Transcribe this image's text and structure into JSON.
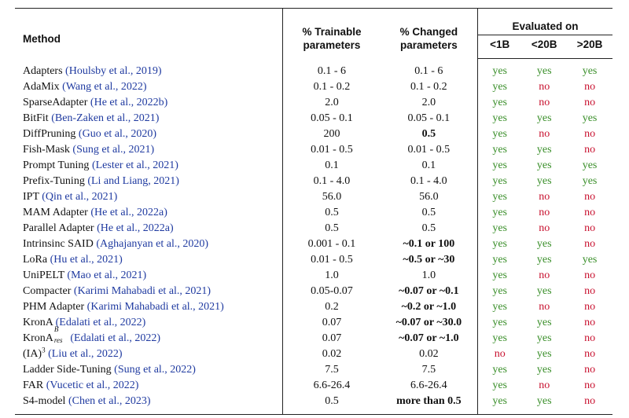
{
  "header": {
    "method": "Method",
    "trainable_1": "% Trainable",
    "trainable_2": "parameters",
    "changed_1": "% Changed",
    "changed_2": "parameters",
    "evaluated": "Evaluated on",
    "eval_lt1b": "<1B",
    "eval_lt20b": "<20B",
    "eval_gt20b": ">20B"
  },
  "rows": [
    {
      "name": "Adapters",
      "cite": "(Houlsby et al., 2019)",
      "trainable": "0.1 - 6",
      "changed": "0.1 - 6",
      "changed_bold": false,
      "e1": "yes",
      "e2": "yes",
      "e3": "yes"
    },
    {
      "name": "AdaMix",
      "cite": "(Wang et al., 2022)",
      "trainable": "0.1 - 0.2",
      "changed": "0.1 - 0.2",
      "changed_bold": false,
      "e1": "yes",
      "e2": "no",
      "e3": "no"
    },
    {
      "name": "SparseAdapter",
      "cite": "(He et al., 2022b)",
      "trainable": "2.0",
      "changed": "2.0",
      "changed_bold": false,
      "e1": "yes",
      "e2": "no",
      "e3": "no"
    },
    {
      "name": "BitFit",
      "cite": "(Ben-Zaken et al., 2021)",
      "trainable": "0.05 - 0.1",
      "changed": "0.05 - 0.1",
      "changed_bold": false,
      "e1": "yes",
      "e2": "yes",
      "e3": "yes"
    },
    {
      "name": "DiffPruning",
      "cite": "(Guo et al., 2020)",
      "trainable": "200",
      "changed": "0.5",
      "changed_bold": true,
      "e1": "yes",
      "e2": "no",
      "e3": "no"
    },
    {
      "name": "Fish-Mask",
      "cite": "(Sung et al., 2021)",
      "trainable": "0.01 - 0.5",
      "changed": "0.01 - 0.5",
      "changed_bold": false,
      "e1": "yes",
      "e2": "yes",
      "e3": "no"
    },
    {
      "name": "Prompt Tuning",
      "cite": "(Lester et al., 2021)",
      "trainable": "0.1",
      "changed": "0.1",
      "changed_bold": false,
      "e1": "yes",
      "e2": "yes",
      "e3": "yes"
    },
    {
      "name": "Prefix-Tuning",
      "cite": "(Li and Liang, 2021)",
      "trainable": "0.1 - 4.0",
      "changed": "0.1 - 4.0",
      "changed_bold": false,
      "e1": "yes",
      "e2": "yes",
      "e3": "yes"
    },
    {
      "name": "IPT",
      "cite": "(Qin et al., 2021)",
      "trainable": "56.0",
      "changed": "56.0",
      "changed_bold": false,
      "e1": "yes",
      "e2": "no",
      "e3": "no"
    },
    {
      "name": "MAM Adapter",
      "cite": "(He et al., 2022a)",
      "trainable": "0.5",
      "changed": "0.5",
      "changed_bold": false,
      "e1": "yes",
      "e2": "no",
      "e3": "no"
    },
    {
      "name": "Parallel Adapter",
      "cite": "(He et al., 2022a)",
      "trainable": "0.5",
      "changed": "0.5",
      "changed_bold": false,
      "e1": "yes",
      "e2": "no",
      "e3": "no"
    },
    {
      "name": "Intrinsinc SAID",
      "cite": "(Aghajanyan et al., 2020)",
      "trainable": "0.001 - 0.1",
      "changed": "~0.1 or 100",
      "changed_bold": true,
      "e1": "yes",
      "e2": "yes",
      "e3": "no"
    },
    {
      "name": "LoRa",
      "cite": "(Hu et al., 2021)",
      "trainable": "0.01 - 0.5",
      "changed": "~0.5 or ~30",
      "changed_bold": true,
      "e1": "yes",
      "e2": "yes",
      "e3": "yes"
    },
    {
      "name": "UniPELT",
      "cite": "(Mao et al., 2021)",
      "trainable": "1.0",
      "changed": "1.0",
      "changed_bold": false,
      "e1": "yes",
      "e2": "no",
      "e3": "no"
    },
    {
      "name": "Compacter",
      "cite": "(Karimi Mahabadi et al., 2021)",
      "trainable": "0.05-0.07",
      "changed": "~0.07 or ~0.1",
      "changed_bold": true,
      "e1": "yes",
      "e2": "yes",
      "e3": "no"
    },
    {
      "name": "PHM Adapter",
      "cite": "(Karimi Mahabadi et al., 2021)",
      "trainable": "0.2",
      "changed": "~0.2 or ~1.0",
      "changed_bold": true,
      "e1": "yes",
      "e2": "no",
      "e3": "no"
    },
    {
      "name": "KronA",
      "cite": "(Edalati et al., 2022)",
      "trainable": "0.07",
      "changed": "~0.07 or ~30.0",
      "changed_bold": true,
      "e1": "yes",
      "e2": "yes",
      "e3": "no"
    },
    {
      "name": "KronA",
      "name_sup": "B",
      "name_sub": "res",
      "cite": "(Edalati et al., 2022)",
      "trainable": "0.07",
      "changed": "~0.07 or ~1.0",
      "changed_bold": true,
      "e1": "yes",
      "e2": "yes",
      "e3": "no"
    },
    {
      "name": "(IA)",
      "name_pow": "3",
      "cite": "(Liu et al., 2022)",
      "trainable": "0.02",
      "changed": "0.02",
      "changed_bold": false,
      "e1": "no",
      "e2": "yes",
      "e3": "no"
    },
    {
      "name": "Ladder Side-Tuning",
      "cite": "(Sung et al., 2022)",
      "trainable": "7.5",
      "changed": "7.5",
      "changed_bold": false,
      "e1": "yes",
      "e2": "yes",
      "e3": "no"
    },
    {
      "name": "FAR",
      "cite": "(Vucetic et al., 2022)",
      "trainable": "6.6-26.4",
      "changed": "6.6-26.4",
      "changed_bold": false,
      "e1": "yes",
      "e2": "no",
      "e3": "no"
    },
    {
      "name": "S4-model",
      "cite": "(Chen et al., 2023)",
      "trainable": "0.5",
      "changed": "more than 0.5",
      "changed_bold": true,
      "e1": "yes",
      "e2": "yes",
      "e3": "no"
    }
  ],
  "colors": {
    "citation": "#1f3aa0",
    "yes": "#3a8f2a",
    "no": "#c8102e",
    "rule": "#222222"
  }
}
